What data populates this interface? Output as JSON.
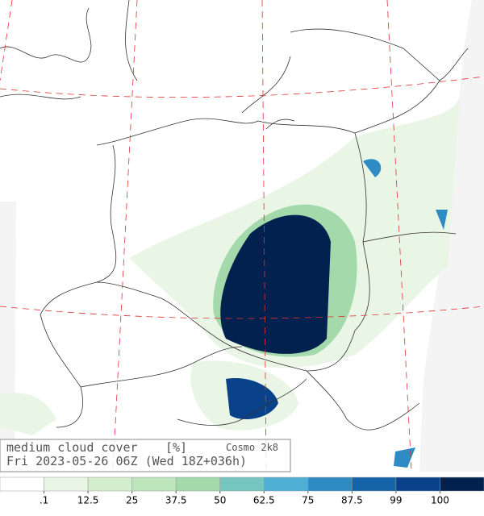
{
  "legend": {
    "title": "medium cloud cover",
    "unit": "[%]",
    "model": "Cosmo 2k8",
    "timestamp": "Fri 2023-05-26 06Z (Wed 18Z+036h)"
  },
  "colorbar": {
    "colors": [
      "#ffffff",
      "#e9f6e5",
      "#d3eecd",
      "#bde5bb",
      "#a3d9ab",
      "#74c6bf",
      "#4eaed4",
      "#2f8bc3",
      "#1564a9",
      "#0a4289",
      "#03214f"
    ],
    "ticks": [
      {
        "value": 0.1,
        "label": ".1"
      },
      12.5,
      25,
      37.5,
      50,
      62.5,
      75,
      87.5,
      99,
      100
    ]
  }
}
